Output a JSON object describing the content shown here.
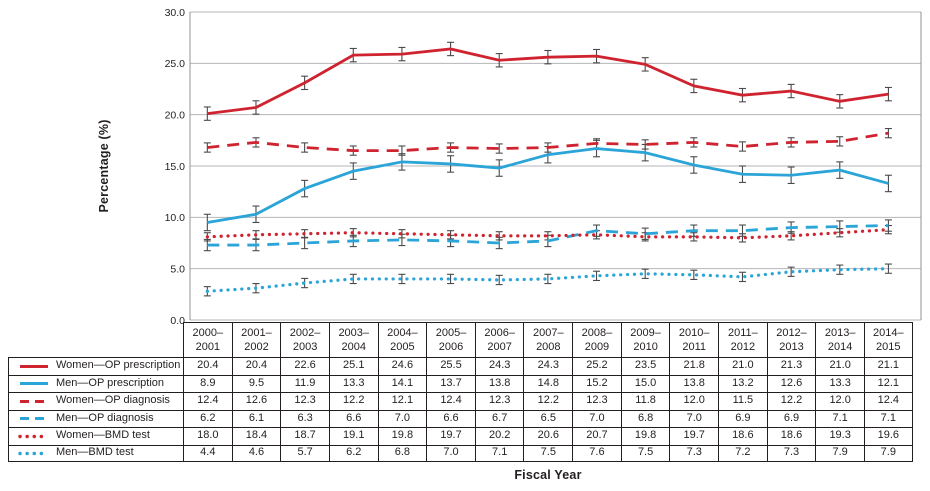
{
  "chart_data": {
    "type": "line",
    "title": "",
    "xlabel": "Fiscal Year",
    "ylabel": "Percentage (%)",
    "ylim": [
      0,
      30
    ],
    "ytick_labels": [
      "0.0",
      "5.0",
      "10.0",
      "15.0",
      "20.0",
      "25.0",
      "30.0"
    ],
    "grid": true,
    "error_bars": true,
    "legend_position": "table-left-column",
    "categories": [
      "2000–2001",
      "2001–2002",
      "2002–2003",
      "2003–2004",
      "2004–2005",
      "2005–2006",
      "2006–2007",
      "2007–2008",
      "2008–2009",
      "2009–2010",
      "2010–2011",
      "2011–2012",
      "2012–2013",
      "2013–2014",
      "2014–2015"
    ],
    "series": [
      {
        "name": "Women—OP prescription",
        "style": "solid",
        "color": "#cf2330",
        "values": [
          20.4,
          20.4,
          22.6,
          25.1,
          24.6,
          25.5,
          24.3,
          24.3,
          25.2,
          23.5,
          21.8,
          21.0,
          21.3,
          21.0,
          21.1
        ],
        "plotted": [
          20.1,
          20.7,
          23.1,
          25.8,
          25.9,
          26.4,
          25.3,
          25.6,
          25.7,
          24.9,
          22.8,
          21.9,
          22.3,
          21.3,
          22.0
        ],
        "error": 0.65
      },
      {
        "name": "Men—OP prescription",
        "style": "solid",
        "color": "#2ba4d8",
        "values": [
          8.9,
          9.5,
          11.9,
          13.3,
          14.1,
          13.7,
          13.8,
          14.8,
          15.2,
          15.0,
          13.8,
          13.2,
          12.6,
          13.3,
          12.1
        ],
        "plotted": [
          9.5,
          10.3,
          12.8,
          14.5,
          15.4,
          15.2,
          14.8,
          16.1,
          16.7,
          16.3,
          15.1,
          14.2,
          14.1,
          14.6,
          13.3
        ],
        "error": 0.8
      },
      {
        "name": "Women—OP diagnosis",
        "style": "dashed",
        "color": "#cf2330",
        "values": [
          12.4,
          12.6,
          12.3,
          12.2,
          12.1,
          12.4,
          12.3,
          12.2,
          12.3,
          11.8,
          12.0,
          11.5,
          12.2,
          12.0,
          12.4
        ],
        "plotted": [
          16.8,
          17.3,
          16.8,
          16.5,
          16.5,
          16.8,
          16.7,
          16.8,
          17.2,
          17.1,
          17.3,
          16.9,
          17.3,
          17.4,
          18.2
        ],
        "error": 0.45
      },
      {
        "name": "Men—OP diagnosis",
        "style": "dashed",
        "color": "#2ba4d8",
        "values": [
          6.2,
          6.1,
          6.3,
          6.6,
          7.0,
          6.6,
          6.7,
          6.5,
          7.0,
          6.8,
          7.0,
          6.9,
          6.9,
          7.1,
          7.1
        ],
        "plotted": [
          7.3,
          7.3,
          7.5,
          7.7,
          7.8,
          7.7,
          7.5,
          7.7,
          8.7,
          8.4,
          8.7,
          8.7,
          9.0,
          9.1,
          9.2
        ],
        "error": 0.55
      },
      {
        "name": "Women—BMD test",
        "style": "dotted",
        "color": "#cf2330",
        "values": [
          18.0,
          18.4,
          18.7,
          19.1,
          19.8,
          19.7,
          20.2,
          20.6,
          20.7,
          19.8,
          19.7,
          18.6,
          18.6,
          19.3,
          19.6
        ],
        "plotted": [
          8.1,
          8.3,
          8.4,
          8.5,
          8.4,
          8.3,
          8.2,
          8.2,
          8.3,
          8.1,
          8.1,
          8.0,
          8.2,
          8.5,
          8.8
        ],
        "error": 0.4
      },
      {
        "name": "Men—BMD test",
        "style": "dotted",
        "color": "#2ba4d8",
        "values": [
          4.4,
          4.6,
          5.7,
          6.2,
          6.8,
          7.0,
          7.1,
          7.5,
          7.6,
          7.5,
          7.3,
          7.2,
          7.3,
          7.9,
          7.9
        ],
        "plotted": [
          2.8,
          3.1,
          3.6,
          4.0,
          4.0,
          4.0,
          3.9,
          4.0,
          4.3,
          4.5,
          4.4,
          4.2,
          4.7,
          4.9,
          5.0
        ],
        "error": 0.45
      }
    ]
  },
  "colors": {
    "red_series": "#cf2330",
    "blue_series": "#2ba4d8",
    "error_bar": "#4a4a4c",
    "gridline": "#b4b6b8",
    "axis_line": "#919395",
    "table_border": "#231f20",
    "text": "#231f20"
  }
}
